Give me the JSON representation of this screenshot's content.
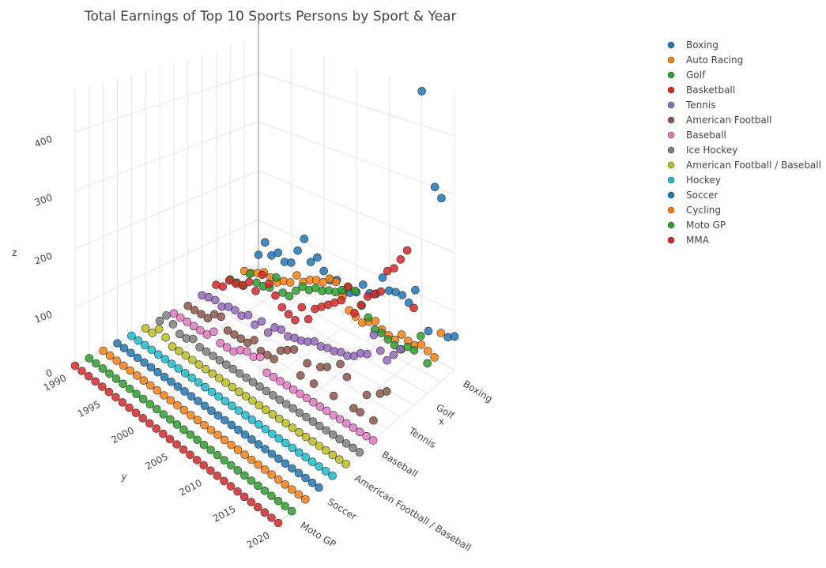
{
  "chart_data": {
    "type": "scatter3d",
    "title": "Total Earnings of Top 10 Sports Persons by Sport & Year",
    "x_title": "x",
    "y_title": "y",
    "z_title": "z",
    "y": [
      1990,
      1991,
      1992,
      1993,
      1994,
      1995,
      1996,
      1997,
      1998,
      1999,
      2000,
      2001,
      2002,
      2003,
      2004,
      2005,
      2006,
      2007,
      2008,
      2009,
      2010,
      2011,
      2012,
      2013,
      2014,
      2015,
      2016,
      2017,
      2018,
      2019,
      2020
    ],
    "ylim": [
      1990,
      2020
    ],
    "yticks": [
      1990,
      1995,
      2000,
      2005,
      2010,
      2015,
      2020
    ],
    "zlim": [
      0,
      470
    ],
    "zticks": [
      0,
      100,
      200,
      300,
      400
    ],
    "series": [
      {
        "name": "Boxing",
        "color": "#1f77b4",
        "values": [
          28,
          60,
          40,
          52,
          40,
          45,
          75,
          104,
          65,
          80,
          60,
          48,
          55,
          38,
          43,
          50,
          70,
          60,
          65,
          100,
          82,
          85,
          85,
          77,
          105,
          460,
          44,
          300,
          285,
          50,
          57
        ]
      },
      {
        "name": "Auto Racing",
        "color": "#ff7f0e",
        "values": [
          10,
          13,
          20,
          28,
          25,
          22,
          31,
          35,
          55,
          49,
          59,
          65,
          67,
          80,
          80,
          60,
          40,
          35,
          30,
          38,
          45,
          36,
          32,
          30,
          45,
          40,
          38,
          45,
          40,
          35,
          82
        ]
      },
      {
        "name": "Golf",
        "color": "#2ca02c",
        "values": [
          8,
          9,
          10,
          40,
          30,
          30,
          34,
          60,
          38,
          38,
          55,
          69,
          69,
          79,
          80,
          87,
          90,
          100,
          110,
          110,
          90,
          75,
          60,
          60,
          55,
          51,
          50,
          60,
          60,
          90,
          50
        ]
      },
      {
        "name": "Basketball",
        "color": "#d62728",
        "values": [
          12,
          16,
          35,
          36,
          40,
          53,
          43,
          80,
          70,
          55,
          40,
          34,
          30,
          60,
          45,
          70,
          80,
          90,
          100,
          110,
          140,
          100,
          120,
          140,
          150,
          160,
          200,
          210,
          230,
          250,
          160
        ]
      },
      {
        "name": "Tennis",
        "color": "#9467bd",
        "values": [
          6,
          10,
          12,
          7,
          14,
          15,
          12,
          20,
          10,
          23,
          10,
          26,
          29,
          24,
          28,
          30,
          35,
          42,
          40,
          44,
          45,
          50,
          50,
          56,
          67,
          72,
          110,
          90,
          80,
          95,
          110
        ]
      },
      {
        "name": "American Football",
        "color": "#8c564b",
        "values": [
          0,
          0,
          0,
          0,
          15,
          18,
          0,
          0,
          0,
          0,
          12,
          0,
          0,
          0,
          22,
          30,
          38,
          0,
          28,
          0,
          35,
          42,
          0,
          60,
          45,
          0,
          0,
          35,
          0,
          50,
          60
        ]
      },
      {
        "name": "Baseball",
        "color": "#e377c2",
        "values": [
          0,
          0,
          0,
          0,
          0,
          0,
          13,
          0,
          0,
          0,
          10,
          15,
          13,
          20,
          0,
          0,
          0,
          0,
          0,
          0,
          0,
          0,
          0,
          0,
          0,
          0,
          0,
          0,
          0,
          0,
          0
        ]
      },
      {
        "name": "Ice Hockey",
        "color": "#7f7f7f",
        "values": [
          0,
          18,
          10,
          0,
          0,
          7,
          0,
          0,
          0,
          0,
          0,
          0,
          0,
          0,
          0,
          0,
          0,
          0,
          0,
          0,
          0,
          0,
          0,
          0,
          0,
          0,
          0,
          0,
          0,
          0,
          0
        ]
      },
      {
        "name": "American Football / Baseball",
        "color": "#bcbd22",
        "values": [
          0,
          0,
          15,
          8,
          0,
          0,
          0,
          0,
          0,
          0,
          0,
          0,
          0,
          0,
          0,
          0,
          0,
          0,
          0,
          0,
          0,
          0,
          0,
          0,
          0,
          0,
          0,
          0,
          0,
          0,
          0
        ]
      },
      {
        "name": "Hockey",
        "color": "#17becf",
        "values": [
          0,
          0,
          0,
          0,
          0,
          0,
          0,
          0,
          0,
          0,
          0,
          0,
          0,
          0,
          0,
          0,
          0,
          0,
          0,
          0,
          0,
          0,
          0,
          0,
          0,
          0,
          0,
          0,
          0,
          0,
          0
        ]
      },
      {
        "name": "Soccer",
        "color": "#1f77b4",
        "values": [
          0,
          0,
          0,
          0,
          0,
          0,
          0,
          0,
          0,
          0,
          0,
          0,
          0,
          0,
          0,
          0,
          0,
          0,
          0,
          0,
          0,
          0,
          0,
          0,
          0,
          0,
          0,
          0,
          0,
          0,
          0
        ]
      },
      {
        "name": "Cycling",
        "color": "#ff7f0e",
        "values": [
          0,
          0,
          0,
          0,
          0,
          0,
          0,
          0,
          0,
          0,
          0,
          0,
          0,
          0,
          0,
          0,
          0,
          0,
          0,
          0,
          0,
          0,
          0,
          0,
          0,
          0,
          0,
          0,
          0,
          0,
          0
        ]
      },
      {
        "name": "Moto GP",
        "color": "#2ca02c",
        "values": [
          0,
          0,
          0,
          0,
          0,
          0,
          0,
          0,
          0,
          0,
          0,
          0,
          0,
          0,
          0,
          0,
          0,
          0,
          0,
          0,
          0,
          0,
          0,
          0,
          0,
          0,
          0,
          0,
          0,
          0,
          0
        ]
      },
      {
        "name": "MMA",
        "color": "#d62728",
        "values": [
          0,
          0,
          0,
          0,
          0,
          0,
          0,
          0,
          0,
          0,
          0,
          0,
          0,
          0,
          0,
          0,
          0,
          0,
          0,
          0,
          0,
          0,
          0,
          0,
          0,
          0,
          0,
          0,
          0,
          0,
          0
        ]
      }
    ]
  }
}
